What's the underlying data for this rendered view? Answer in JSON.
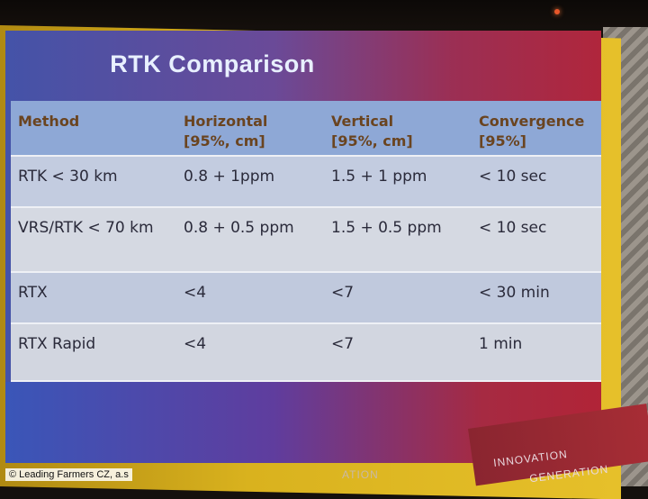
{
  "slide": {
    "title": "RTK Comparison",
    "table": {
      "headers": [
        "Method",
        "Horizontal\n[95%, cm]",
        "Vertical\n[95%, cm]",
        "Convergence\n[95%]"
      ],
      "rows": [
        [
          "RTK < 30 km",
          "0.8 + 1ppm",
          "1.5 + 1 ppm",
          "< 10 sec"
        ],
        [
          "VRS/RTK < 70 km",
          "0.8 + 0.5 ppm",
          "1.5 + 0.5 ppm",
          "< 10 sec"
        ],
        [
          "RTX",
          "<4",
          "<7",
          "< 30 min"
        ],
        [
          "RTX Rapid",
          "<4",
          "<7",
          "1 min"
        ]
      ]
    }
  },
  "footer": {
    "logo_line1": "INNOVATION",
    "logo_line2": "GENERATION",
    "partial_left": "ATION",
    "copyright": "© Leading Farmers CZ, a.s"
  },
  "colors": {
    "slide_blue": "#4453a8",
    "slide_red": "#b0263c",
    "frame_yellow": "#d9b21e",
    "header_text": "#6a4420"
  }
}
